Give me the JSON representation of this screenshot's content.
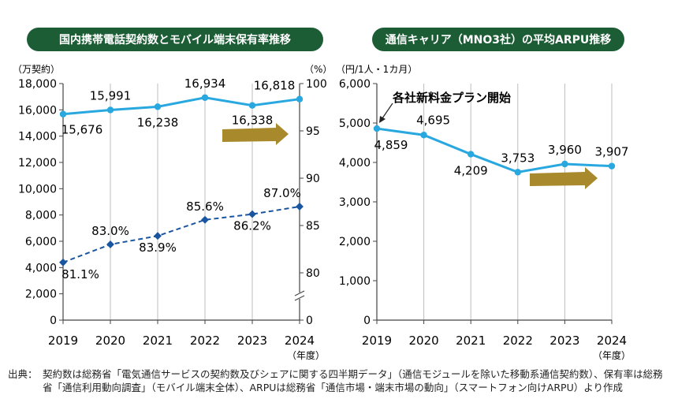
{
  "chart_data": [
    {
      "type": "line",
      "title": "国内携帯電話契約数とモバイル端末保有率推移",
      "y_unit_left": "（万契約）",
      "y_unit_right": "（%）",
      "x_unit": "（年度）",
      "categories": [
        "2019",
        "2020",
        "2021",
        "2022",
        "2023",
        "2024"
      ],
      "ylim_left": [
        0,
        18000
      ],
      "yticks_left": [
        "0",
        "2,000",
        "4,000",
        "6,000",
        "8,000",
        "10,000",
        "12,000",
        "14,000",
        "16,000",
        "18,000"
      ],
      "ylim_right": [
        80,
        100
      ],
      "yticks_right": [
        "0",
        "80",
        "85",
        "90",
        "95",
        "100"
      ],
      "right_axis_break": true,
      "grid": "vertical",
      "series": [
        {
          "axis": "left",
          "style": "solid",
          "color": "#29a8e0",
          "values": [
            15676,
            15991,
            16238,
            16934,
            16338,
            16818
          ],
          "labels": [
            "15,676",
            "15,991",
            "16,238",
            "16,934",
            "16,338",
            "16,818"
          ]
        },
        {
          "axis": "right",
          "style": "dashed",
          "color": "#1a56a0",
          "values": [
            81.1,
            83.0,
            83.9,
            85.6,
            86.2,
            87.0
          ],
          "labels": [
            "81.1%",
            "83.0%",
            "83.9%",
            "85.6%",
            "86.2%",
            "87.0%"
          ]
        }
      ]
    },
    {
      "type": "line",
      "title": "通信キャリア（MNO3社）の平均ARPU推移",
      "y_unit_left": "（円/1人・1カ月）",
      "x_unit": "（年度）",
      "categories": [
        "2019",
        "2020",
        "2021",
        "2022",
        "2023",
        "2024"
      ],
      "ylim_left": [
        0,
        6000
      ],
      "yticks_left": [
        "0",
        "1,000",
        "2,000",
        "3,000",
        "4,000",
        "5,000",
        "6,000"
      ],
      "grid": "vertical",
      "annotation": "各社新料金プラン開始",
      "series": [
        {
          "axis": "left",
          "style": "solid",
          "color": "#29a8e0",
          "values": [
            4859,
            4695,
            4209,
            3753,
            3960,
            3907
          ],
          "labels": [
            "4,859",
            "4,695",
            "4,209",
            "3,753",
            "3,960",
            "3,907"
          ]
        }
      ]
    }
  ],
  "colors": {
    "title_bg": "#1d5d36",
    "title_text": "#ffffff",
    "trend_arrow": "#a88a2c",
    "axis": "#444444",
    "grid": "#bdbdbd"
  },
  "source": {
    "label": "出典：",
    "text": "契約数は総務省「電気通信サービスの契約数及びシェアに関する四半期データ」（通信モジュールを除いた移動系通信契約数）、保有率は総務省「通信利用動向調査」（モバイル端末全体）、ARPUは総務省「通信市場・端末市場の動向」（スマートフォン向けARPU）より作成"
  }
}
